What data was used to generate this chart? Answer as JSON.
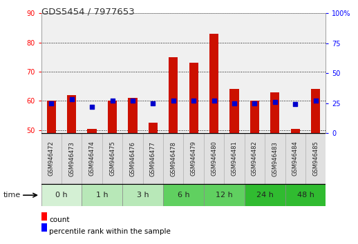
{
  "title": "GDS5454 / 7977653",
  "samples": [
    "GSM946472",
    "GSM946473",
    "GSM946474",
    "GSM946475",
    "GSM946476",
    "GSM946477",
    "GSM946478",
    "GSM946479",
    "GSM946480",
    "GSM946481",
    "GSM946482",
    "GSM946483",
    "GSM946484",
    "GSM946485"
  ],
  "count_values": [
    60,
    62,
    50.5,
    60,
    61,
    52.5,
    75,
    73,
    83,
    64,
    60,
    63,
    50.5,
    64
  ],
  "percentile_values": [
    25,
    28,
    22,
    27,
    27,
    25,
    27,
    27,
    27,
    25,
    25,
    26,
    24,
    27
  ],
  "time_groups": [
    {
      "label": "0 h",
      "samples": [
        0,
        1
      ],
      "color": "#d4f0d4"
    },
    {
      "label": "1 h",
      "samples": [
        2,
        3
      ],
      "color": "#b8e8b8"
    },
    {
      "label": "3 h",
      "samples": [
        4,
        5
      ],
      "color": "#b8e8b8"
    },
    {
      "label": "6 h",
      "samples": [
        6,
        7
      ],
      "color": "#60d060"
    },
    {
      "label": "12 h",
      "samples": [
        8,
        9
      ],
      "color": "#60d060"
    },
    {
      "label": "24 h",
      "samples": [
        10,
        11
      ],
      "color": "#30bb30"
    },
    {
      "label": "48 h",
      "samples": [
        12,
        13
      ],
      "color": "#30bb30"
    }
  ],
  "ylim_left": [
    49,
    90
  ],
  "ylim_right": [
    0,
    100
  ],
  "yticks_left": [
    50,
    60,
    70,
    80,
    90
  ],
  "yticks_right": [
    0,
    25,
    50,
    75,
    100
  ],
  "bar_color": "#cc1100",
  "dot_color": "#0000cc",
  "bar_bottom": 49,
  "plot_bg": "#f0f0f0",
  "grid_color": "#000000",
  "title_fontsize": 9.5,
  "tick_fontsize": 7,
  "sample_fontsize": 6,
  "time_fontsize": 8
}
